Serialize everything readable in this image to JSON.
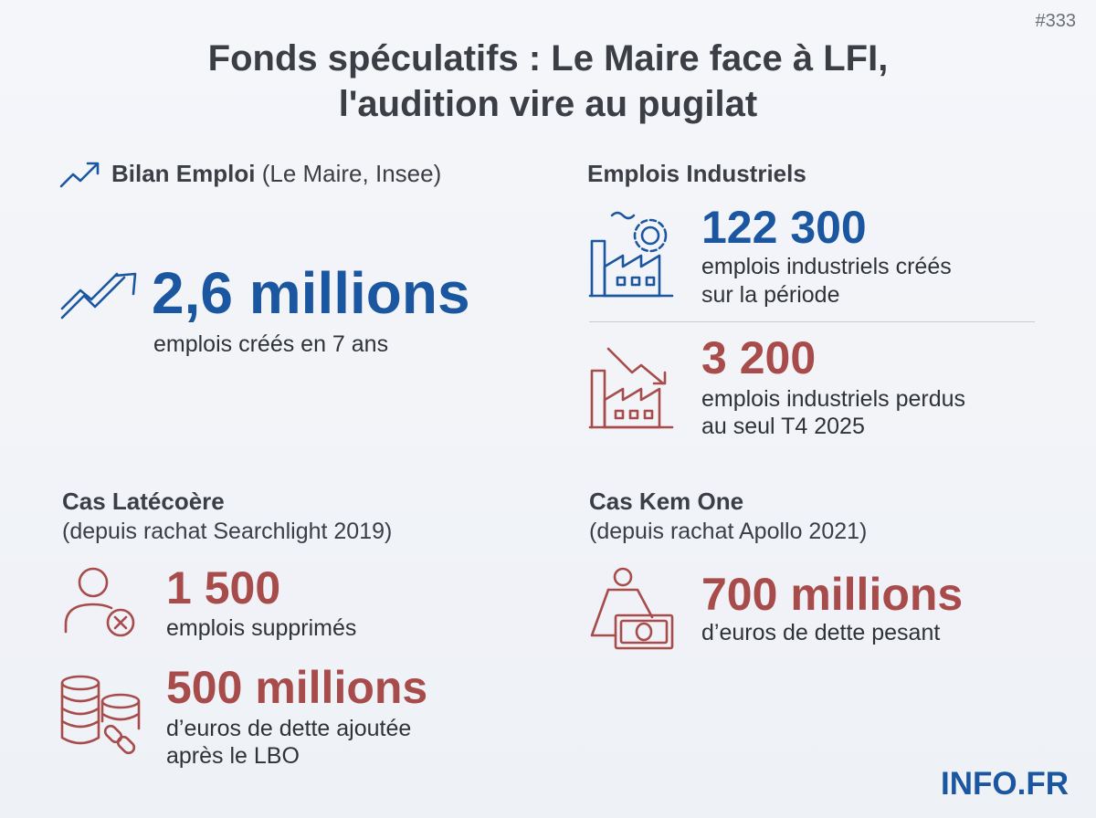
{
  "badge": "#333",
  "title": [
    "Fonds spéculatifs : Le Maire face à LFI,",
    "l'audition vire au pugilat"
  ],
  "sections": [
    {
      "heading": "Bilan Emploi",
      "source": "(Le Maire, Insee)",
      "stats": [
        {
          "value": "2,6 millions",
          "label": [
            "emplois créés en 7 ans"
          ]
        }
      ]
    },
    {
      "heading": "Emplois Industriels",
      "stats": [
        {
          "value": "122 300",
          "label": [
            "emplois industriels créés",
            "sur la période"
          ]
        },
        {
          "value": "3 200",
          "label": [
            "emplois industriels perdus",
            "au seul T4 2025"
          ]
        }
      ]
    },
    {
      "heading": "Cas Latécoère",
      "subheading": "(depuis rachat Searchlight 2019)",
      "stats": [
        {
          "value": "1 500",
          "label": [
            "emplois supprimés"
          ]
        },
        {
          "value": "500 millions",
          "label": [
            "d’euros de dette ajoutée",
            "après le LBO"
          ]
        }
      ]
    },
    {
      "heading": "Cas Kem One",
      "subheading": "(depuis rachat Apollo 2021)",
      "stats": [
        {
          "value": "700 millions",
          "label": [
            "d’euros de dette pesant"
          ]
        }
      ]
    }
  ],
  "footer": "INFO.FR"
}
